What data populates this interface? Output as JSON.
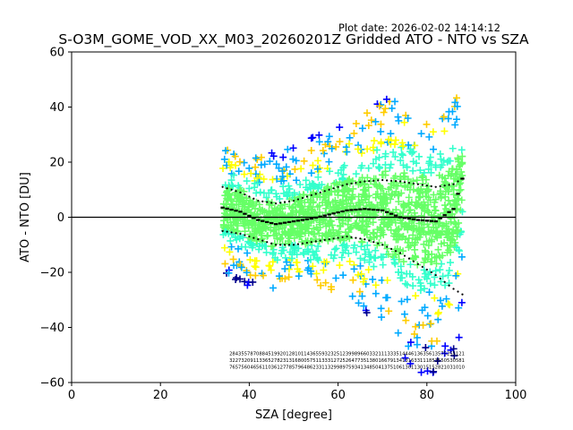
{
  "chart_data": {
    "type": "scatter",
    "title": "S-O3M_GOME_VOD_XX_M03_20260201Z Gridded ATO - NTO vs SZA",
    "plot_date": "Plot date: 2026-02-02 14:14:12",
    "xlabel": "SZA [degree]",
    "ylabel": "ATO - NTO [DU]",
    "xlim": [
      0,
      100
    ],
    "ylim": [
      -60,
      60
    ],
    "xticks": [
      0,
      20,
      40,
      60,
      80,
      100
    ],
    "yticks": [
      -60,
      -40,
      -20,
      0,
      20,
      40,
      60
    ],
    "xtick_labels": [
      "0",
      "20",
      "40",
      "60",
      "80",
      "100"
    ],
    "ytick_labels": [
      "−60",
      "−40",
      "−20",
      "0",
      "20",
      "40",
      "60"
    ],
    "zero_line": 0,
    "sza_range": [
      34,
      88
    ],
    "marker": "+",
    "density_colors": [
      "#00008b",
      "#0000ff",
      "#00aaff",
      "#33ffcc",
      "#66ff66",
      "#ffff00",
      "#ffcc00"
    ],
    "mean_curve": {
      "x": [
        34,
        38,
        42,
        46,
        50,
        54,
        58,
        62,
        66,
        70,
        74,
        78,
        82,
        86,
        88
      ],
      "y": [
        3.5,
        2,
        -1,
        -2.5,
        -1.5,
        -0.5,
        1,
        2.5,
        3,
        2.5,
        0,
        -1,
        -1.5,
        3,
        14
      ]
    },
    "upper_sigma": {
      "x": [
        34,
        38,
        42,
        46,
        50,
        54,
        58,
        62,
        66,
        70,
        74,
        78,
        82,
        86,
        88
      ],
      "y": [
        11,
        9,
        6,
        5,
        6,
        8,
        10,
        12,
        13,
        13.5,
        13,
        12,
        11,
        12,
        14
      ]
    },
    "lower_sigma": {
      "x": [
        34,
        38,
        42,
        46,
        50,
        54,
        58,
        62,
        66,
        70,
        74,
        78,
        82,
        86,
        88
      ],
      "y": [
        -5,
        -6,
        -8,
        -10,
        -10,
        -9,
        -8,
        -7,
        -8,
        -10,
        -13,
        -17,
        -21,
        -26,
        -28
      ]
    },
    "spread_upper": {
      "x": [
        34,
        40,
        45,
        50,
        55,
        60,
        65,
        70,
        75,
        80,
        84,
        87,
        88
      ],
      "y": [
        25,
        22,
        24,
        27,
        32,
        33,
        36,
        44,
        42,
        35,
        40,
        44,
        26
      ]
    },
    "spread_lower": {
      "x": [
        34,
        40,
        45,
        50,
        55,
        60,
        65,
        70,
        75,
        80,
        84,
        87,
        88
      ],
      "y": [
        -20,
        -27,
        -26,
        -22,
        -25,
        -30,
        -33,
        -40,
        -52,
        -58,
        -55,
        -50,
        -32
      ]
    },
    "count_rows": [
      "2843557870884519920128101143655932325123998966033211133351444613635613575255121",
      "3227320911336527823131680057511333127252647735138016679134131633111853550530581",
      "7657560465611036127785796486233113299897593413485041375106130113015152821031010"
    ]
  }
}
